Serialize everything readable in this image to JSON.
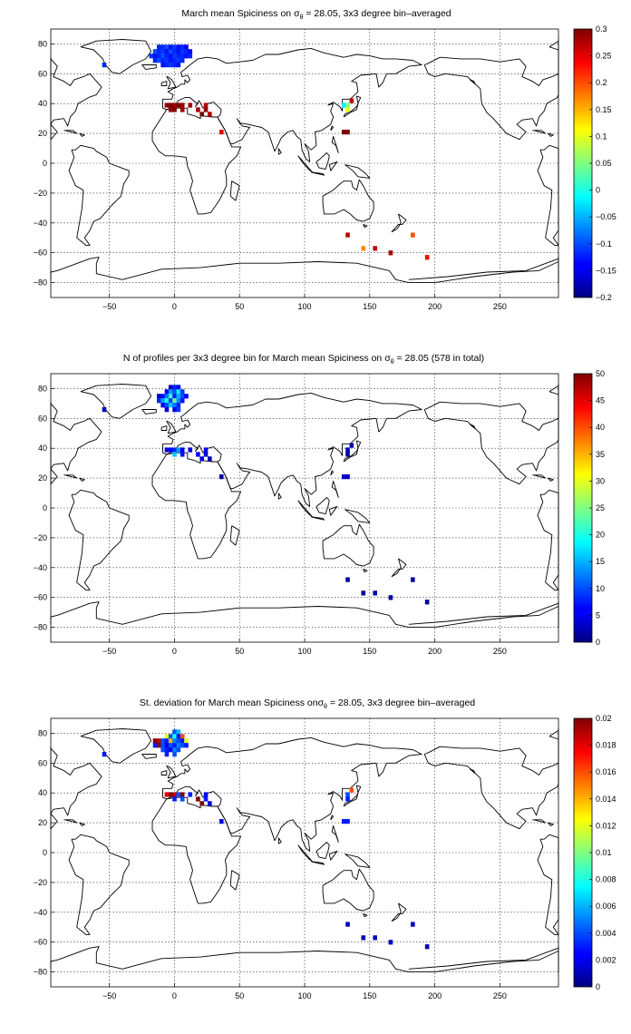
{
  "chart_data": [
    {
      "type": "heatmap",
      "title": {
        "pre": "March mean Spiciness on ",
        "sym": "σ",
        "sub": "θ",
        "post": " = 28.05, 3x3 degree bin–averaged"
      },
      "xlim": [
        -95,
        295
      ],
      "ylim": [
        -90,
        90
      ],
      "xticks": [
        -50,
        0,
        50,
        100,
        150,
        200,
        250
      ],
      "yticks": [
        -80,
        -60,
        -40,
        -20,
        0,
        20,
        40,
        60,
        80
      ],
      "grid": true,
      "colorbar": {
        "min": -0.2,
        "max": 0.3,
        "ticks": [
          -0.2,
          -0.15,
          -0.1,
          -0.05,
          0,
          0.05,
          0.1,
          0.15,
          0.2,
          0.25,
          0.3
        ]
      },
      "cells": [
        [
          -12,
          78,
          -0.12
        ],
        [
          -9,
          78,
          -0.12
        ],
        [
          -6,
          78,
          -0.1
        ],
        [
          -3,
          78,
          -0.13
        ],
        [
          0,
          78,
          -0.11
        ],
        [
          3,
          78,
          -0.13
        ],
        [
          6,
          78,
          -0.12
        ],
        [
          9,
          78,
          -0.14
        ],
        [
          -15,
          75,
          -0.1
        ],
        [
          -12,
          75,
          -0.12
        ],
        [
          -9,
          75,
          -0.11
        ],
        [
          -6,
          75,
          -0.13
        ],
        [
          -3,
          75,
          -0.1
        ],
        [
          0,
          75,
          -0.12
        ],
        [
          3,
          75,
          -0.13
        ],
        [
          6,
          75,
          -0.11
        ],
        [
          9,
          75,
          -0.12
        ],
        [
          12,
          75,
          -0.14
        ],
        [
          -18,
          72,
          -0.11
        ],
        [
          -15,
          72,
          -0.13
        ],
        [
          -12,
          72,
          -0.12
        ],
        [
          -9,
          72,
          -0.1
        ],
        [
          -6,
          72,
          -0.12
        ],
        [
          -3,
          72,
          -0.13
        ],
        [
          0,
          72,
          -0.11
        ],
        [
          3,
          72,
          -0.12
        ],
        [
          6,
          72,
          -0.12
        ],
        [
          9,
          72,
          -0.13
        ],
        [
          12,
          72,
          -0.12
        ],
        [
          -15,
          69,
          -0.12
        ],
        [
          -12,
          69,
          -0.1
        ],
        [
          -9,
          69,
          -0.12
        ],
        [
          -6,
          69,
          -0.11
        ],
        [
          -3,
          69,
          -0.13
        ],
        [
          0,
          69,
          -0.12
        ],
        [
          3,
          69,
          -0.11
        ],
        [
          6,
          69,
          -0.12
        ],
        [
          -9,
          66,
          -0.13
        ],
        [
          -6,
          66,
          -0.12
        ],
        [
          -3,
          66,
          -0.11
        ],
        [
          0,
          66,
          -0.12
        ],
        [
          3,
          66,
          -0.13
        ],
        [
          -54,
          66,
          -0.12
        ],
        [
          -6,
          39,
          0.29
        ],
        [
          -3,
          39,
          0.3
        ],
        [
          0,
          39,
          0.29
        ],
        [
          3,
          39,
          0.3
        ],
        [
          6,
          39,
          0.29
        ],
        [
          12,
          39,
          0.28
        ],
        [
          24,
          39,
          0.27
        ],
        [
          -3,
          36,
          0.29
        ],
        [
          0,
          36,
          0.3
        ],
        [
          6,
          36,
          0.28
        ],
        [
          18,
          36,
          0.28
        ],
        [
          24,
          36,
          0.29
        ],
        [
          21,
          33,
          0.3
        ],
        [
          27,
          33,
          0.27
        ],
        [
          36,
          21,
          0.25
        ],
        [
          130,
          39,
          -0.02
        ],
        [
          133,
          39,
          0.05
        ],
        [
          136,
          42,
          0.27
        ],
        [
          133,
          36,
          0.1
        ],
        [
          130,
          21,
          0.3
        ],
        [
          133,
          21,
          0.3
        ],
        [
          133,
          -48,
          0.27
        ],
        [
          145,
          -57,
          0.17
        ],
        [
          154,
          -57,
          0.27
        ],
        [
          166,
          -60,
          0.28
        ],
        [
          183,
          -48,
          0.2
        ],
        [
          194,
          -63,
          0.24
        ]
      ]
    },
    {
      "type": "heatmap",
      "title": {
        "pre": "N of profiles per 3x3 degree bin for March mean Spiciness on ",
        "sym": "σ",
        "sub": "θ",
        "post": " = 28.05 (578 in total)"
      },
      "xlim": [
        -95,
        295
      ],
      "ylim": [
        -90,
        90
      ],
      "xticks": [
        -50,
        0,
        50,
        100,
        150,
        200,
        250
      ],
      "yticks": [
        -80,
        -60,
        -40,
        -20,
        0,
        20,
        40,
        60,
        80
      ],
      "grid": true,
      "colorbar": {
        "min": 0,
        "max": 50,
        "ticks": [
          0,
          5,
          10,
          15,
          20,
          25,
          30,
          35,
          40,
          45,
          50
        ]
      },
      "cells": [
        [
          -3,
          81,
          3
        ],
        [
          0,
          81,
          8
        ],
        [
          3,
          81,
          5
        ],
        [
          -6,
          78,
          6
        ],
        [
          -3,
          78,
          14
        ],
        [
          0,
          78,
          10
        ],
        [
          3,
          78,
          18
        ],
        [
          6,
          78,
          9
        ],
        [
          -12,
          75,
          4
        ],
        [
          -9,
          75,
          7
        ],
        [
          -6,
          75,
          12
        ],
        [
          -3,
          75,
          22
        ],
        [
          0,
          75,
          8
        ],
        [
          3,
          75,
          15
        ],
        [
          6,
          75,
          10
        ],
        [
          9,
          75,
          6
        ],
        [
          -12,
          72,
          8
        ],
        [
          -9,
          72,
          14
        ],
        [
          -6,
          72,
          20
        ],
        [
          -3,
          72,
          9
        ],
        [
          0,
          72,
          24
        ],
        [
          3,
          72,
          13
        ],
        [
          6,
          72,
          7
        ],
        [
          -9,
          69,
          6
        ],
        [
          -6,
          69,
          10
        ],
        [
          -3,
          69,
          16
        ],
        [
          0,
          69,
          12
        ],
        [
          3,
          69,
          8
        ],
        [
          -6,
          66,
          4
        ],
        [
          0,
          66,
          6
        ],
        [
          3,
          66,
          9
        ],
        [
          -54,
          66,
          3
        ],
        [
          -6,
          39,
          4
        ],
        [
          -3,
          39,
          6
        ],
        [
          0,
          39,
          8
        ],
        [
          3,
          39,
          14
        ],
        [
          6,
          39,
          5
        ],
        [
          12,
          39,
          4
        ],
        [
          24,
          39,
          5
        ],
        [
          0,
          36,
          16
        ],
        [
          6,
          36,
          7
        ],
        [
          18,
          36,
          6
        ],
        [
          24,
          36,
          4
        ],
        [
          21,
          33,
          5
        ],
        [
          27,
          33,
          3
        ],
        [
          36,
          21,
          2
        ],
        [
          133,
          39,
          3
        ],
        [
          136,
          42,
          2
        ],
        [
          133,
          36,
          2
        ],
        [
          130,
          21,
          4
        ],
        [
          133,
          21,
          3
        ],
        [
          133,
          -48,
          1
        ],
        [
          145,
          -57,
          1
        ],
        [
          154,
          -57,
          2
        ],
        [
          166,
          -60,
          1
        ],
        [
          183,
          -48,
          1
        ],
        [
          194,
          -63,
          1
        ]
      ]
    },
    {
      "type": "heatmap",
      "title": {
        "pre": "St. deviation for March mean Spiciness on",
        "sym": "σ",
        "sub": "θ",
        "post": " = 28.05, 3x3 degree bin–averaged"
      },
      "xlim": [
        -95,
        295
      ],
      "ylim": [
        -90,
        90
      ],
      "xticks": [
        -50,
        0,
        50,
        100,
        150,
        200,
        250
      ],
      "yticks": [
        -80,
        -60,
        -40,
        -20,
        0,
        20,
        40,
        60,
        80
      ],
      "grid": true,
      "colorbar": {
        "min": 0,
        "max": 0.02,
        "ticks": [
          0,
          0.002,
          0.004,
          0.006,
          0.008,
          0.01,
          0.012,
          0.014,
          0.016,
          0.018,
          0.02
        ]
      },
      "cells": [
        [
          0,
          81,
          0.004
        ],
        [
          3,
          81,
          0.006
        ],
        [
          -6,
          78,
          0.012
        ],
        [
          -3,
          78,
          0.004
        ],
        [
          0,
          78,
          0.008
        ],
        [
          3,
          78,
          0.003
        ],
        [
          6,
          78,
          0.016
        ],
        [
          -15,
          75,
          0.02
        ],
        [
          -12,
          75,
          0.019
        ],
        [
          -9,
          75,
          0.004
        ],
        [
          -6,
          75,
          0.003
        ],
        [
          -3,
          75,
          0.014
        ],
        [
          0,
          75,
          0.005
        ],
        [
          3,
          75,
          0.004
        ],
        [
          6,
          75,
          0.003
        ],
        [
          9,
          75,
          0.012
        ],
        [
          -15,
          72,
          0.003
        ],
        [
          -12,
          72,
          0.02
        ],
        [
          -9,
          72,
          0.004
        ],
        [
          -6,
          72,
          0.002
        ],
        [
          -3,
          72,
          0.004
        ],
        [
          0,
          72,
          0.003
        ],
        [
          3,
          72,
          0.005
        ],
        [
          6,
          72,
          0.004
        ],
        [
          9,
          72,
          0.003
        ],
        [
          -9,
          69,
          0.004
        ],
        [
          -6,
          69,
          0.003
        ],
        [
          -3,
          69,
          0.002
        ],
        [
          0,
          69,
          0.005
        ],
        [
          3,
          69,
          0.004
        ],
        [
          -6,
          66,
          0.003
        ],
        [
          0,
          66,
          0.004
        ],
        [
          -54,
          66,
          0.003
        ],
        [
          -6,
          39,
          0.018
        ],
        [
          -3,
          39,
          0.02
        ],
        [
          0,
          39,
          0.019
        ],
        [
          3,
          39,
          0.004
        ],
        [
          6,
          39,
          0.02
        ],
        [
          12,
          39,
          0.003
        ],
        [
          24,
          39,
          0.002
        ],
        [
          0,
          36,
          0.003
        ],
        [
          6,
          36,
          0.004
        ],
        [
          18,
          36,
          0.02
        ],
        [
          24,
          36,
          0.003
        ],
        [
          21,
          33,
          0.02
        ],
        [
          27,
          33,
          0.002
        ],
        [
          36,
          21,
          0.002
        ],
        [
          133,
          39,
          0.004
        ],
        [
          136,
          42,
          0.016
        ],
        [
          133,
          36,
          0.003
        ],
        [
          130,
          21,
          0.003
        ],
        [
          133,
          21,
          0.003
        ],
        [
          133,
          -48,
          0.001
        ],
        [
          145,
          -57,
          0.001
        ],
        [
          154,
          -57,
          0.001
        ],
        [
          166,
          -60,
          0.001
        ],
        [
          183,
          -48,
          0.001
        ],
        [
          194,
          -63,
          0.001
        ]
      ]
    }
  ]
}
